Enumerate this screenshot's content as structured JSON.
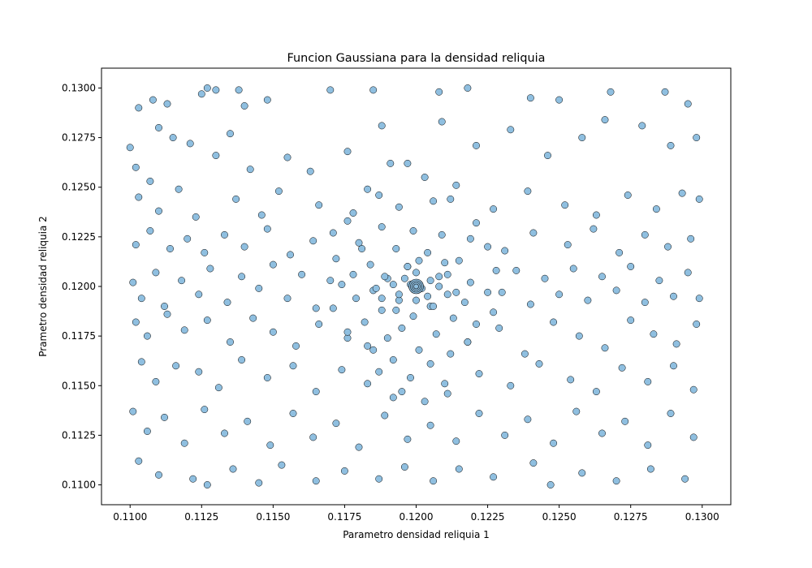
{
  "chart_data": {
    "type": "scatter",
    "title": "Funcion Gaussiana para la densidad reliquia",
    "xlabel": "Parametro densidad reliquia 1",
    "ylabel": "Prametro densidad reliquia 2",
    "xlim": [
      0.109,
      0.131
    ],
    "ylim": [
      0.109,
      0.131
    ],
    "xticks": [
      "0.1100",
      "0.1125",
      "0.1150",
      "0.1175",
      "0.1200",
      "0.1225",
      "0.1250",
      "0.1275",
      "0.1300"
    ],
    "yticks": [
      "0.1100",
      "0.1125",
      "0.1150",
      "0.1175",
      "0.1200",
      "0.1225",
      "0.1250",
      "0.1275",
      "0.1300"
    ],
    "grid": false,
    "marker_color": "#8fbfe0",
    "marker_edge_color": "#000000",
    "center": [
      0.12,
      0.12
    ],
    "points": [
      [
        0.11,
        0.127
      ],
      [
        0.1103,
        0.129
      ],
      [
        0.1108,
        0.1294
      ],
      [
        0.1113,
        0.1292
      ],
      [
        0.1125,
        0.1297
      ],
      [
        0.1127,
        0.13
      ],
      [
        0.113,
        0.1299
      ],
      [
        0.1138,
        0.1299
      ],
      [
        0.114,
        0.1291
      ],
      [
        0.1148,
        0.1294
      ],
      [
        0.117,
        0.1299
      ],
      [
        0.1185,
        0.1299
      ],
      [
        0.1208,
        0.1298
      ],
      [
        0.1218,
        0.13
      ],
      [
        0.124,
        0.1295
      ],
      [
        0.125,
        0.1294
      ],
      [
        0.1268,
        0.1298
      ],
      [
        0.1287,
        0.1298
      ],
      [
        0.1295,
        0.1292
      ],
      [
        0.1102,
        0.126
      ],
      [
        0.1107,
        0.1253
      ],
      [
        0.111,
        0.128
      ],
      [
        0.1115,
        0.1275
      ],
      [
        0.1121,
        0.1272
      ],
      [
        0.113,
        0.1266
      ],
      [
        0.1135,
        0.1277
      ],
      [
        0.1142,
        0.1259
      ],
      [
        0.1155,
        0.1265
      ],
      [
        0.1163,
        0.1258
      ],
      [
        0.1176,
        0.1268
      ],
      [
        0.1188,
        0.1281
      ],
      [
        0.1197,
        0.1262
      ],
      [
        0.1209,
        0.1283
      ],
      [
        0.1221,
        0.1271
      ],
      [
        0.1233,
        0.1279
      ],
      [
        0.1246,
        0.1266
      ],
      [
        0.1258,
        0.1275
      ],
      [
        0.1266,
        0.1284
      ],
      [
        0.1279,
        0.1281
      ],
      [
        0.1289,
        0.1271
      ],
      [
        0.1298,
        0.1275
      ],
      [
        0.1103,
        0.1245
      ],
      [
        0.111,
        0.1238
      ],
      [
        0.1117,
        0.1249
      ],
      [
        0.1123,
        0.1235
      ],
      [
        0.1137,
        0.1244
      ],
      [
        0.1146,
        0.1236
      ],
      [
        0.1152,
        0.1248
      ],
      [
        0.1166,
        0.1241
      ],
      [
        0.1178,
        0.1237
      ],
      [
        0.1187,
        0.1246
      ],
      [
        0.1212,
        0.1244
      ],
      [
        0.1227,
        0.1239
      ],
      [
        0.1239,
        0.1248
      ],
      [
        0.1252,
        0.1241
      ],
      [
        0.1263,
        0.1236
      ],
      [
        0.1274,
        0.1246
      ],
      [
        0.1284,
        0.1239
      ],
      [
        0.1293,
        0.1247
      ],
      [
        0.1299,
        0.1244
      ],
      [
        0.1102,
        0.1221
      ],
      [
        0.1107,
        0.1228
      ],
      [
        0.1114,
        0.1219
      ],
      [
        0.112,
        0.1224
      ],
      [
        0.1126,
        0.1217
      ],
      [
        0.1133,
        0.1226
      ],
      [
        0.114,
        0.122
      ],
      [
        0.1148,
        0.1229
      ],
      [
        0.1156,
        0.1216
      ],
      [
        0.1164,
        0.1223
      ],
      [
        0.1171,
        0.1227
      ],
      [
        0.1181,
        0.1219
      ],
      [
        0.1219,
        0.1224
      ],
      [
        0.1231,
        0.1218
      ],
      [
        0.1241,
        0.1227
      ],
      [
        0.1253,
        0.1221
      ],
      [
        0.1262,
        0.1229
      ],
      [
        0.1271,
        0.1217
      ],
      [
        0.128,
        0.1226
      ],
      [
        0.1288,
        0.122
      ],
      [
        0.1296,
        0.1224
      ],
      [
        0.1101,
        0.1202
      ],
      [
        0.1104,
        0.1194
      ],
      [
        0.1109,
        0.1207
      ],
      [
        0.1112,
        0.119
      ],
      [
        0.1118,
        0.1203
      ],
      [
        0.1124,
        0.1196
      ],
      [
        0.1128,
        0.1209
      ],
      [
        0.1134,
        0.1192
      ],
      [
        0.1139,
        0.1205
      ],
      [
        0.1145,
        0.1199
      ],
      [
        0.115,
        0.1211
      ],
      [
        0.1155,
        0.1194
      ],
      [
        0.116,
        0.1206
      ],
      [
        0.1165,
        0.1189
      ],
      [
        0.117,
        0.1203
      ],
      [
        0.123,
        0.1197
      ],
      [
        0.1235,
        0.1208
      ],
      [
        0.124,
        0.1191
      ],
      [
        0.1245,
        0.1204
      ],
      [
        0.125,
        0.1196
      ],
      [
        0.1255,
        0.1209
      ],
      [
        0.126,
        0.1193
      ],
      [
        0.1265,
        0.1205
      ],
      [
        0.127,
        0.1198
      ],
      [
        0.1275,
        0.121
      ],
      [
        0.128,
        0.1192
      ],
      [
        0.1285,
        0.1203
      ],
      [
        0.129,
        0.1195
      ],
      [
        0.1295,
        0.1207
      ],
      [
        0.1299,
        0.1194
      ],
      [
        0.1102,
        0.1182
      ],
      [
        0.1106,
        0.1175
      ],
      [
        0.1113,
        0.1186
      ],
      [
        0.1119,
        0.1178
      ],
      [
        0.1127,
        0.1183
      ],
      [
        0.1135,
        0.1172
      ],
      [
        0.1143,
        0.1184
      ],
      [
        0.115,
        0.1177
      ],
      [
        0.1158,
        0.117
      ],
      [
        0.1166,
        0.1181
      ],
      [
        0.1176,
        0.1174
      ],
      [
        0.1185,
        0.1168
      ],
      [
        0.1218,
        0.1172
      ],
      [
        0.1229,
        0.1179
      ],
      [
        0.1238,
        0.1166
      ],
      [
        0.1248,
        0.1182
      ],
      [
        0.1257,
        0.1175
      ],
      [
        0.1266,
        0.1169
      ],
      [
        0.1275,
        0.1183
      ],
      [
        0.1283,
        0.1176
      ],
      [
        0.1291,
        0.1171
      ],
      [
        0.1298,
        0.1181
      ],
      [
        0.1104,
        0.1162
      ],
      [
        0.1109,
        0.1152
      ],
      [
        0.1116,
        0.116
      ],
      [
        0.1124,
        0.1157
      ],
      [
        0.1131,
        0.1149
      ],
      [
        0.1139,
        0.1163
      ],
      [
        0.1148,
        0.1154
      ],
      [
        0.1157,
        0.116
      ],
      [
        0.1165,
        0.1147
      ],
      [
        0.1174,
        0.1158
      ],
      [
        0.1183,
        0.1151
      ],
      [
        0.1192,
        0.1144
      ],
      [
        0.1211,
        0.1146
      ],
      [
        0.1222,
        0.1156
      ],
      [
        0.1233,
        0.115
      ],
      [
        0.1243,
        0.1161
      ],
      [
        0.1254,
        0.1153
      ],
      [
        0.1263,
        0.1147
      ],
      [
        0.1272,
        0.1159
      ],
      [
        0.1281,
        0.1152
      ],
      [
        0.129,
        0.116
      ],
      [
        0.1297,
        0.1148
      ],
      [
        0.1101,
        0.1137
      ],
      [
        0.1106,
        0.1127
      ],
      [
        0.1112,
        0.1134
      ],
      [
        0.1119,
        0.1121
      ],
      [
        0.1126,
        0.1138
      ],
      [
        0.1133,
        0.1126
      ],
      [
        0.1141,
        0.1132
      ],
      [
        0.1149,
        0.112
      ],
      [
        0.1157,
        0.1136
      ],
      [
        0.1164,
        0.1124
      ],
      [
        0.1172,
        0.1131
      ],
      [
        0.118,
        0.1119
      ],
      [
        0.1189,
        0.1135
      ],
      [
        0.1197,
        0.1123
      ],
      [
        0.1205,
        0.113
      ],
      [
        0.1214,
        0.1122
      ],
      [
        0.1222,
        0.1136
      ],
      [
        0.1231,
        0.1125
      ],
      [
        0.1239,
        0.1133
      ],
      [
        0.1248,
        0.1121
      ],
      [
        0.1256,
        0.1137
      ],
      [
        0.1265,
        0.1126
      ],
      [
        0.1273,
        0.1132
      ],
      [
        0.1281,
        0.112
      ],
      [
        0.1289,
        0.1136
      ],
      [
        0.1297,
        0.1124
      ],
      [
        0.1103,
        0.1112
      ],
      [
        0.111,
        0.1105
      ],
      [
        0.1122,
        0.1103
      ],
      [
        0.1127,
        0.11
      ],
      [
        0.1136,
        0.1108
      ],
      [
        0.1145,
        0.1101
      ],
      [
        0.1153,
        0.111
      ],
      [
        0.1165,
        0.1102
      ],
      [
        0.1175,
        0.1107
      ],
      [
        0.1187,
        0.1103
      ],
      [
        0.1196,
        0.1109
      ],
      [
        0.1206,
        0.1102
      ],
      [
        0.1215,
        0.1108
      ],
      [
        0.1227,
        0.1104
      ],
      [
        0.1241,
        0.1111
      ],
      [
        0.1247,
        0.11
      ],
      [
        0.1258,
        0.1106
      ],
      [
        0.127,
        0.1102
      ],
      [
        0.1282,
        0.1108
      ],
      [
        0.1294,
        0.1103
      ],
      [
        0.1191,
        0.1262
      ],
      [
        0.1203,
        0.1255
      ],
      [
        0.1183,
        0.1249
      ],
      [
        0.1214,
        0.1251
      ],
      [
        0.1194,
        0.124
      ],
      [
        0.1206,
        0.1243
      ],
      [
        0.1176,
        0.1233
      ],
      [
        0.1221,
        0.1232
      ],
      [
        0.1188,
        0.123
      ],
      [
        0.1199,
        0.1228
      ],
      [
        0.1209,
        0.1226
      ],
      [
        0.118,
        0.1222
      ],
      [
        0.1225,
        0.122
      ],
      [
        0.1193,
        0.1219
      ],
      [
        0.1204,
        0.1217
      ],
      [
        0.1172,
        0.1214
      ],
      [
        0.1215,
        0.1213
      ],
      [
        0.1184,
        0.1211
      ],
      [
        0.1197,
        0.121
      ],
      [
        0.1228,
        0.1208
      ],
      [
        0.1178,
        0.1206
      ],
      [
        0.1208,
        0.1205
      ],
      [
        0.119,
        0.1204
      ],
      [
        0.1219,
        0.1202
      ],
      [
        0.1174,
        0.1201
      ],
      [
        0.1201,
        0.1199
      ],
      [
        0.1185,
        0.1198
      ],
      [
        0.1225,
        0.1197
      ],
      [
        0.1211,
        0.1196
      ],
      [
        0.1179,
        0.1194
      ],
      [
        0.1194,
        0.1193
      ],
      [
        0.1217,
        0.1192
      ],
      [
        0.1205,
        0.119
      ],
      [
        0.1171,
        0.1189
      ],
      [
        0.1188,
        0.1188
      ],
      [
        0.1227,
        0.1187
      ],
      [
        0.1199,
        0.1185
      ],
      [
        0.1213,
        0.1184
      ],
      [
        0.1182,
        0.1182
      ],
      [
        0.1221,
        0.1181
      ],
      [
        0.1195,
        0.1179
      ],
      [
        0.1176,
        0.1177
      ],
      [
        0.1207,
        0.1176
      ],
      [
        0.119,
        0.1174
      ],
      [
        0.1218,
        0.1172
      ],
      [
        0.1183,
        0.117
      ],
      [
        0.1201,
        0.1168
      ],
      [
        0.1212,
        0.1166
      ],
      [
        0.1192,
        0.1163
      ],
      [
        0.1205,
        0.1161
      ],
      [
        0.1187,
        0.1157
      ],
      [
        0.1198,
        0.1154
      ],
      [
        0.121,
        0.1151
      ],
      [
        0.1195,
        0.1147
      ],
      [
        0.1203,
        0.1142
      ],
      [
        0.1198,
        0.1201
      ],
      [
        0.1202,
        0.1199
      ],
      [
        0.1196,
        0.1204
      ],
      [
        0.1205,
        0.1203
      ],
      [
        0.1194,
        0.1196
      ],
      [
        0.1204,
        0.1195
      ],
      [
        0.12,
        0.1207
      ],
      [
        0.1208,
        0.12
      ],
      [
        0.1192,
        0.1201
      ],
      [
        0.12,
        0.1193
      ],
      [
        0.1197,
        0.121
      ],
      [
        0.1211,
        0.1206
      ],
      [
        0.1189,
        0.1205
      ],
      [
        0.1206,
        0.119
      ],
      [
        0.1188,
        0.1194
      ],
      [
        0.1214,
        0.1197
      ],
      [
        0.1193,
        0.1188
      ],
      [
        0.1201,
        0.1213
      ],
      [
        0.1186,
        0.1199
      ],
      [
        0.121,
        0.1212
      ]
    ]
  }
}
